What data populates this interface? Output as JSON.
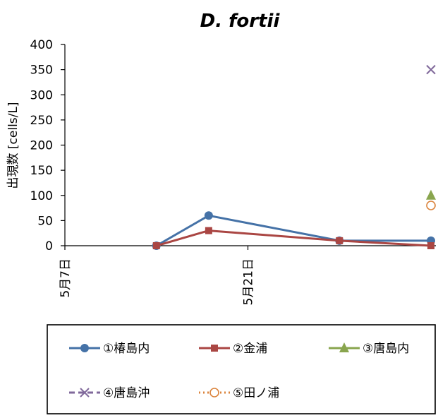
{
  "chart_data": {
    "type": "line",
    "title": "D. fortii",
    "ylabel": "出現数 [cells/L]",
    "xlabel": "",
    "ylim": [
      0,
      400
    ],
    "yticks": [
      0,
      50,
      100,
      150,
      200,
      250,
      300,
      350,
      400
    ],
    "x_tick_labels": [
      "5月7日",
      "5月21日"
    ],
    "grid": false,
    "legend_position": "bottom",
    "series": [
      {
        "name": "①椿島内",
        "color": "#4572A7",
        "marker": "circle",
        "line_style": "solid",
        "points": [
          {
            "x": "5月14日",
            "y": 0
          },
          {
            "x": "5月18日",
            "y": 60
          },
          {
            "x": "5月28日",
            "y": 10
          },
          {
            "x": "6月4日",
            "y": 10
          }
        ]
      },
      {
        "name": "②金浦",
        "color": "#AA4643",
        "marker": "square",
        "line_style": "solid",
        "points": [
          {
            "x": "5月14日",
            "y": 0
          },
          {
            "x": "5月18日",
            "y": 30
          },
          {
            "x": "5月28日",
            "y": 10
          },
          {
            "x": "6月4日",
            "y": 0
          }
        ]
      },
      {
        "name": "③唐島内",
        "color": "#89A54E",
        "marker": "triangle",
        "line_style": "solid",
        "points": [
          {
            "x": "6月4日",
            "y": 100
          }
        ]
      },
      {
        "name": "④唐島沖",
        "color": "#80699B",
        "marker": "x",
        "line_style": "dashed",
        "points": [
          {
            "x": "6月4日",
            "y": 350
          }
        ]
      },
      {
        "name": "⑤田ノ浦",
        "color": "#DB843D",
        "marker": "open-circle",
        "line_style": "dotted",
        "points": [
          {
            "x": "6月4日",
            "y": 80
          }
        ]
      }
    ]
  }
}
